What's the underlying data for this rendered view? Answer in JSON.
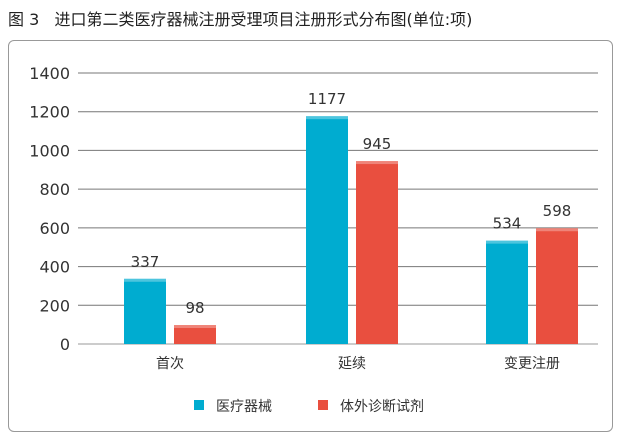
{
  "chart_data": {
    "type": "bar",
    "title": "图 3   进口第二类医疗器械注册受理项目注册形式分布图(单位:项)",
    "categories": [
      "首次",
      "延续",
      "变更注册"
    ],
    "series": [
      {
        "name": "医疗器械",
        "values": [
          337,
          1177,
          534
        ],
        "color": "#00acd0"
      },
      {
        "name": "体外诊断试剂",
        "values": [
          98,
          945,
          598
        ],
        "color": "#e94f3f"
      }
    ],
    "yticks": [
      "0",
      "200",
      "400",
      "600",
      "800",
      "1000",
      "1200",
      "1400"
    ],
    "ylim": [
      0,
      1400
    ],
    "xlabel": "",
    "ylabel": "",
    "grid": true,
    "legend": "bottom"
  }
}
